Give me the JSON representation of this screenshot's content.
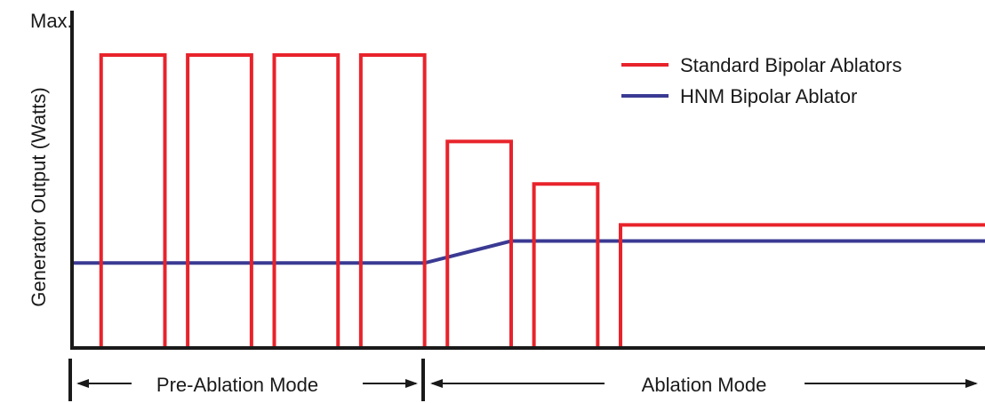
{
  "chart_data": {
    "type": "line",
    "title": "",
    "ylabel": "Generator Output (Watts)",
    "ymax_label": "Max.",
    "y_axis_scale": "relative (0 = none, 1 = Max.)",
    "grid": false,
    "legend_position": "top-right",
    "series": [
      {
        "name": "Standard Bipolar Ablators",
        "color": "#e8232b",
        "pulses": [
          {
            "start": 0.03,
            "end": 0.1,
            "level": 1.0
          },
          {
            "start": 0.125,
            "end": 0.195,
            "level": 1.0
          },
          {
            "start": 0.22,
            "end": 0.29,
            "level": 1.0
          },
          {
            "start": 0.315,
            "end": 0.385,
            "level": 1.0
          },
          {
            "start": 0.41,
            "end": 0.48,
            "level": 0.705
          },
          {
            "start": 0.505,
            "end": 0.575,
            "level": 0.56
          },
          {
            "start": 0.6,
            "end": 1.0,
            "level": 0.42
          }
        ]
      },
      {
        "name": "HNM Bipolar Ablator",
        "color": "#3a3a93",
        "points": [
          [
            0.0,
            0.29
          ],
          [
            0.385,
            0.29
          ],
          [
            0.48,
            0.365
          ],
          [
            1.0,
            0.365
          ]
        ]
      }
    ],
    "modes": [
      {
        "label": "Pre-Ablation Mode",
        "start": 0.0,
        "end": 0.385
      },
      {
        "label": "Ablation Mode",
        "start": 0.385,
        "end": 1.0
      }
    ]
  }
}
